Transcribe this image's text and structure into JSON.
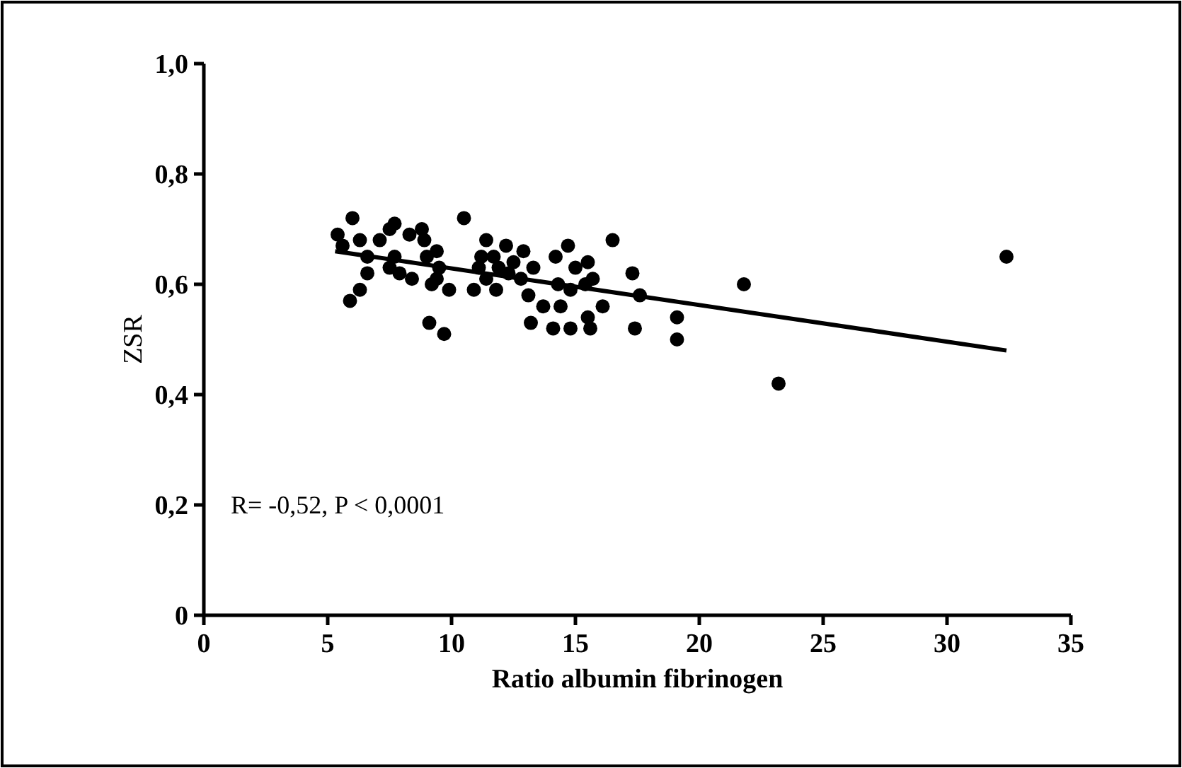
{
  "chart_data": {
    "type": "scatter",
    "xlabel": "Ratio albumin fibrinogen",
    "ylabel": "ZSR",
    "annotations": [
      "R= -0,52, P < 0,0001"
    ],
    "xlim": [
      0,
      35
    ],
    "ylim": [
      0,
      1
    ],
    "xticks": [
      0,
      5,
      10,
      15,
      20,
      25,
      30,
      35
    ],
    "yticks": [
      0,
      {
        "value": 0.2,
        "label": "0,2"
      },
      {
        "value": 0.4,
        "label": "0,4"
      },
      {
        "value": 0.6,
        "label": "0,6"
      },
      {
        "value": 0.8,
        "label": "0,8"
      },
      {
        "value": 1,
        "label": "1,0"
      }
    ],
    "series": [
      {
        "color": "#000000",
        "marker": "circle",
        "x": [
          6.0,
          5.4,
          5.6,
          6.3,
          6.6,
          7.1,
          7.5,
          7.7,
          8.3,
          8.8,
          8.9,
          9.4,
          7.7,
          7.5,
          7.9,
          6.6,
          8.4,
          6.3,
          5.9,
          9.0,
          9.5,
          9.4,
          9.2,
          9.9,
          10.5,
          9.1,
          9.7,
          10.9,
          11.4,
          11.2,
          11.1,
          11.7,
          12.2,
          11.9,
          11.8,
          11.4,
          12.3,
          12.9,
          12.5,
          13.3,
          12.8,
          13.1,
          13.2,
          14.2,
          14.7,
          15.0,
          14.3,
          13.7,
          14.4,
          14.1,
          14.8,
          15.4,
          15.5,
          16.5,
          15.5,
          15.7,
          17.3,
          14.8,
          16.1,
          17.6,
          15.6,
          17.4,
          19.1,
          19.1,
          21.8,
          23.2,
          32.4
        ],
        "values": [
          0.72,
          0.69,
          0.67,
          0.68,
          0.65,
          0.68,
          0.7,
          0.71,
          0.69,
          0.7,
          0.68,
          0.66,
          0.65,
          0.63,
          0.62,
          0.62,
          0.61,
          0.59,
          0.57,
          0.65,
          0.63,
          0.61,
          0.6,
          0.59,
          0.72,
          0.53,
          0.51,
          0.59,
          0.68,
          0.65,
          0.63,
          0.65,
          0.67,
          0.63,
          0.59,
          0.61,
          0.62,
          0.66,
          0.64,
          0.63,
          0.61,
          0.58,
          0.53,
          0.65,
          0.67,
          0.63,
          0.6,
          0.56,
          0.56,
          0.52,
          0.52,
          0.6,
          0.54,
          0.68,
          0.64,
          0.61,
          0.62,
          0.59,
          0.56,
          0.58,
          0.52,
          0.52,
          0.54,
          0.5,
          0.6,
          0.42,
          0.65
        ]
      },
      {
        "type": "line",
        "color": "#000000",
        "marker": "none",
        "line_style": "solid",
        "x": [
          5.3,
          32.4
        ],
        "values": [
          0.66,
          0.48
        ]
      }
    ]
  }
}
